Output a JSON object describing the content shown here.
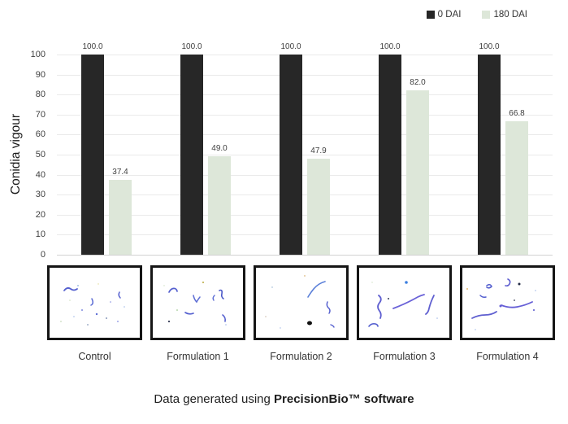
{
  "chart_data": {
    "type": "bar",
    "categories": [
      "Control",
      "Formulation 1",
      "Formulation 2",
      "Formulation 3",
      "Formulation 4"
    ],
    "series": [
      {
        "name": "0 DAI",
        "color": "#272727",
        "values": [
          100.0,
          100.0,
          100.0,
          100.0,
          100.0
        ]
      },
      {
        "name": "180 DAI",
        "color": "#dde7d9",
        "values": [
          37.4,
          49.0,
          47.9,
          82.0,
          66.8
        ]
      }
    ],
    "title": "",
    "xlabel": "",
    "ylabel": "Conidia vigour",
    "ylim": [
      0,
      100
    ],
    "yticks": [
      0,
      10,
      20,
      30,
      40,
      50,
      60,
      70,
      80,
      90,
      100
    ],
    "grid": true,
    "legend_position": "top-right",
    "value_label_decimals": 1
  },
  "caption": {
    "prefix": "Data generated using ",
    "brand": "PrecisionBio™ software"
  }
}
